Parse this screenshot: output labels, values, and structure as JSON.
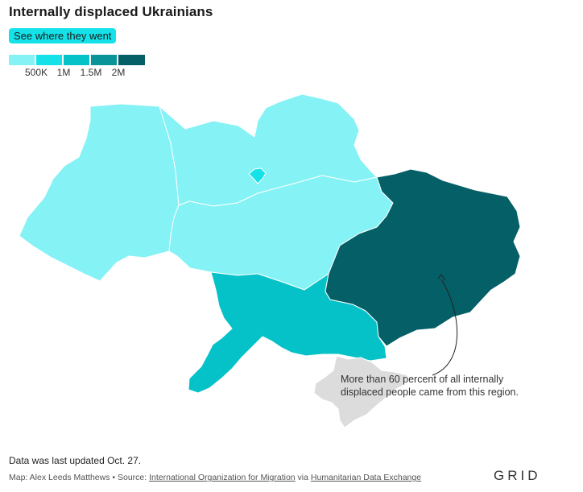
{
  "header": {
    "title": "Internally displaced Ukrainians",
    "toggle_label": "See where they went"
  },
  "legend": {
    "colors": [
      "#85f2f5",
      "#14e2e8",
      "#05c2c8",
      "#0a9399",
      "#045f66"
    ],
    "ticks": [
      "500K",
      "1M",
      "1.5M",
      "2M"
    ]
  },
  "map": {
    "region_colors": {
      "west": "#85f2f5",
      "north": "#85f2f5",
      "kyiv_city": "#14e2e8",
      "center": "#85f2f5",
      "south": "#05c2c8",
      "east": "#045f66",
      "crimea": "#dcdcdc"
    },
    "border_color": "#ffffff"
  },
  "annotation": {
    "text": "More than 60 percent of all internally displaced people came from this region."
  },
  "footer": {
    "updated": "Data was last updated Oct. 27.",
    "credit_prefix": "Map: Alex Leeds Matthews • Source: ",
    "source_1": "International Organization for Migration",
    "credit_via": " via ",
    "source_2": "Humanitarian Data Exchange",
    "logo": "GRID"
  }
}
